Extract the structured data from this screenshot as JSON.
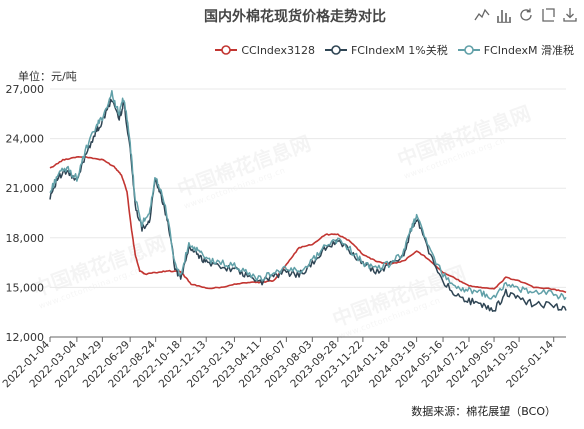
{
  "title": "国内外棉花现货价格走势对比",
  "unit_label": "单位：元/吨",
  "source_note": "数据来源：棉花展望（BCO）",
  "watermark_text": "中国棉花信息网",
  "watermark_url": "www.cottonchina.org.cn",
  "toolbox": [
    "line-chart-icon",
    "bar-chart-icon",
    "refresh-icon",
    "restore-icon",
    "download-icon"
  ],
  "colors": {
    "grid": "#e8e8e8",
    "axis": "#666666"
  },
  "chart_data": {
    "type": "line",
    "title": "国内外棉花现货价格走势对比",
    "ylabel": "单位：元/吨",
    "ylim": [
      12000,
      27000
    ],
    "yticks": [
      12000,
      15000,
      18000,
      21000,
      24000,
      27000
    ],
    "ytick_labels": [
      "12,000",
      "15,000",
      "18,000",
      "21,000",
      "24,000",
      "27,000"
    ],
    "xlim": [
      "2022-01-04",
      "2025-02-10"
    ],
    "xticks": [
      "2022-01-04",
      "2022-03-04",
      "2022-04-29",
      "2022-06-29",
      "2022-08-24",
      "2022-10-18",
      "2022-12-13",
      "2023-02-13",
      "2023-04-11",
      "2023-06-07",
      "2023-08-03",
      "2023-09-28",
      "2023-11-22",
      "2024-01-18",
      "2024-03-19",
      "2024-05-16",
      "2024-07-12",
      "2024-09-05",
      "2024-10-30",
      "2025-01-14"
    ],
    "grid": true,
    "legend_position": "top-right",
    "series": [
      {
        "name": "CCIndex3128",
        "color": "#c23531",
        "points": [
          [
            "2022-01-04",
            22200
          ],
          [
            "2022-02-01",
            22700
          ],
          [
            "2022-03-04",
            22900
          ],
          [
            "2022-04-01",
            22850
          ],
          [
            "2022-05-01",
            22700
          ],
          [
            "2022-05-25",
            22300
          ],
          [
            "2022-06-10",
            21800
          ],
          [
            "2022-06-22",
            20800
          ],
          [
            "2022-07-01",
            18700
          ],
          [
            "2022-07-10",
            17000
          ],
          [
            "2022-07-20",
            16000
          ],
          [
            "2022-08-01",
            15800
          ],
          [
            "2022-08-24",
            15900
          ],
          [
            "2022-09-20",
            16000
          ],
          [
            "2022-10-18",
            15950
          ],
          [
            "2022-11-10",
            15200
          ],
          [
            "2022-12-13",
            14950
          ],
          [
            "2023-01-15",
            15000
          ],
          [
            "2023-02-13",
            15200
          ],
          [
            "2023-03-15",
            15300
          ],
          [
            "2023-04-11",
            15300
          ],
          [
            "2023-05-10",
            15400
          ],
          [
            "2023-06-07",
            16400
          ],
          [
            "2023-07-05",
            17400
          ],
          [
            "2023-08-03",
            17600
          ],
          [
            "2023-09-01",
            18200
          ],
          [
            "2023-09-28",
            18200
          ],
          [
            "2023-10-25",
            17800
          ],
          [
            "2023-11-22",
            17000
          ],
          [
            "2023-12-20",
            16600
          ],
          [
            "2024-01-18",
            16400
          ],
          [
            "2024-02-20",
            16600
          ],
          [
            "2024-03-19",
            17200
          ],
          [
            "2024-04-15",
            16700
          ],
          [
            "2024-05-16",
            15900
          ],
          [
            "2024-06-15",
            15500
          ],
          [
            "2024-07-12",
            15100
          ],
          [
            "2024-08-10",
            15000
          ],
          [
            "2024-09-05",
            14900
          ],
          [
            "2024-10-01",
            15600
          ],
          [
            "2024-10-30",
            15400
          ],
          [
            "2024-12-01",
            15000
          ],
          [
            "2025-01-14",
            14900
          ],
          [
            "2025-02-10",
            14700
          ]
        ]
      },
      {
        "name": "FCIndexM 1%关税",
        "color": "#2f4554",
        "points": [
          [
            "2022-01-04",
            20500
          ],
          [
            "2022-01-20",
            21600
          ],
          [
            "2022-02-10",
            22000
          ],
          [
            "2022-03-04",
            21400
          ],
          [
            "2022-03-25",
            23200
          ],
          [
            "2022-04-15",
            24400
          ],
          [
            "2022-04-29",
            25000
          ],
          [
            "2022-05-20",
            26400
          ],
          [
            "2022-06-05",
            25200
          ],
          [
            "2022-06-15",
            26200
          ],
          [
            "2022-06-29",
            23400
          ],
          [
            "2022-07-10",
            20000
          ],
          [
            "2022-07-25",
            18600
          ],
          [
            "2022-08-10",
            19000
          ],
          [
            "2022-08-24",
            21600
          ],
          [
            "2022-09-05",
            20500
          ],
          [
            "2022-09-20",
            19000
          ],
          [
            "2022-10-05",
            16200
          ],
          [
            "2022-10-18",
            15500
          ],
          [
            "2022-11-05",
            17400
          ],
          [
            "2022-11-25",
            17000
          ],
          [
            "2022-12-13",
            16500
          ],
          [
            "2023-01-10",
            16300
          ],
          [
            "2023-02-13",
            16100
          ],
          [
            "2023-03-10",
            15700
          ],
          [
            "2023-04-11",
            15300
          ],
          [
            "2023-05-10",
            15700
          ],
          [
            "2023-06-07",
            15900
          ],
          [
            "2023-07-05",
            15800
          ],
          [
            "2023-08-03",
            16400
          ],
          [
            "2023-09-01",
            17400
          ],
          [
            "2023-09-28",
            17800
          ],
          [
            "2023-10-25",
            17200
          ],
          [
            "2023-11-22",
            16400
          ],
          [
            "2023-12-20",
            16000
          ],
          [
            "2024-01-18",
            16300
          ],
          [
            "2024-02-20",
            17000
          ],
          [
            "2024-03-10",
            18700
          ],
          [
            "2024-03-19",
            19200
          ],
          [
            "2024-04-15",
            17200
          ],
          [
            "2024-05-16",
            15400
          ],
          [
            "2024-06-15",
            14500
          ],
          [
            "2024-07-12",
            14200
          ],
          [
            "2024-08-10",
            13900
          ],
          [
            "2024-09-05",
            13600
          ],
          [
            "2024-10-01",
            14700
          ],
          [
            "2024-10-30",
            14300
          ],
          [
            "2024-12-01",
            14000
          ],
          [
            "2025-01-14",
            13900
          ],
          [
            "2025-02-10",
            13600
          ]
        ]
      },
      {
        "name": "FCIndexM 滑准税",
        "color": "#61a0a8",
        "points": [
          [
            "2022-01-04",
            20700
          ],
          [
            "2022-01-20",
            21800
          ],
          [
            "2022-02-10",
            22200
          ],
          [
            "2022-03-04",
            21600
          ],
          [
            "2022-03-25",
            23400
          ],
          [
            "2022-04-15",
            24700
          ],
          [
            "2022-04-29",
            25300
          ],
          [
            "2022-05-20",
            26700
          ],
          [
            "2022-06-05",
            25500
          ],
          [
            "2022-06-15",
            26500
          ],
          [
            "2022-06-29",
            23700
          ],
          [
            "2022-07-10",
            20300
          ],
          [
            "2022-07-25",
            18900
          ],
          [
            "2022-08-10",
            19300
          ],
          [
            "2022-08-24",
            21800
          ],
          [
            "2022-09-05",
            20700
          ],
          [
            "2022-09-20",
            19200
          ],
          [
            "2022-10-05",
            16400
          ],
          [
            "2022-10-18",
            15700
          ],
          [
            "2022-11-05",
            17600
          ],
          [
            "2022-11-25",
            17200
          ],
          [
            "2022-12-13",
            16700
          ],
          [
            "2023-01-10",
            16500
          ],
          [
            "2023-02-13",
            16300
          ],
          [
            "2023-03-10",
            15900
          ],
          [
            "2023-04-11",
            15500
          ],
          [
            "2023-05-10",
            15900
          ],
          [
            "2023-06-07",
            16100
          ],
          [
            "2023-07-05",
            16000
          ],
          [
            "2023-08-03",
            16600
          ],
          [
            "2023-09-01",
            17600
          ],
          [
            "2023-09-28",
            17900
          ],
          [
            "2023-10-25",
            17300
          ],
          [
            "2023-11-22",
            16500
          ],
          [
            "2023-12-20",
            16100
          ],
          [
            "2024-01-18",
            16400
          ],
          [
            "2024-02-20",
            17100
          ],
          [
            "2024-03-10",
            18800
          ],
          [
            "2024-03-19",
            19300
          ],
          [
            "2024-04-15",
            17400
          ],
          [
            "2024-05-16",
            15800
          ],
          [
            "2024-06-15",
            15000
          ],
          [
            "2024-07-12",
            14800
          ],
          [
            "2024-08-10",
            14600
          ],
          [
            "2024-09-05",
            14400
          ],
          [
            "2024-10-01",
            15200
          ],
          [
            "2024-10-30",
            14900
          ],
          [
            "2024-12-01",
            14700
          ],
          [
            "2025-01-14",
            14600
          ],
          [
            "2025-02-10",
            14400
          ]
        ]
      }
    ]
  }
}
